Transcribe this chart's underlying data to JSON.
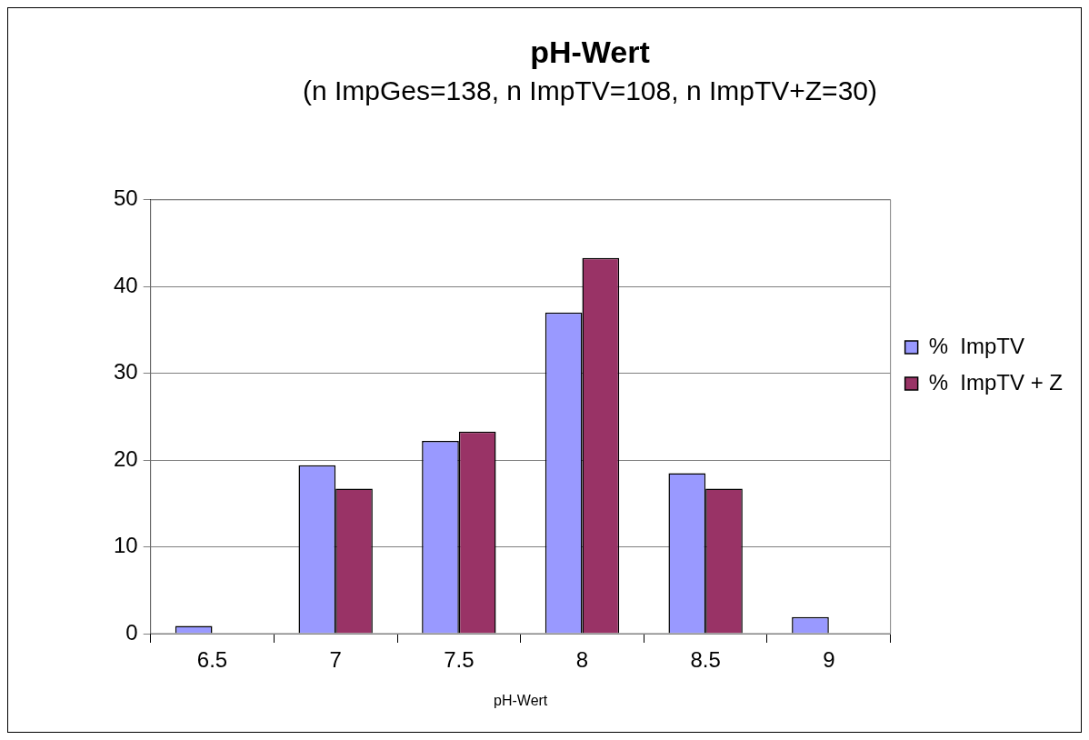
{
  "chart_data": {
    "type": "bar",
    "title": "pH-Wert",
    "subtitle": "(n ImpGes=138, n ImpTV=108, n ImpTV+Z=30)",
    "xlabel": "pH-Wert",
    "categories": [
      "6.5",
      "7",
      "7.5",
      "8",
      "8.5",
      "9"
    ],
    "series": [
      {
        "name": "%  ImpTV",
        "color": "#9999ff",
        "values": [
          0.9,
          19.4,
          22.2,
          37.0,
          18.5,
          1.9
        ]
      },
      {
        "name": "%  ImpTV + Z",
        "color": "#993366",
        "values": [
          0,
          16.7,
          23.3,
          43.3,
          16.7,
          0
        ]
      }
    ],
    "ylim": [
      0,
      50
    ],
    "yticks": [
      0,
      10,
      20,
      30,
      40,
      50
    ],
    "grid": "y",
    "legend": "right"
  }
}
